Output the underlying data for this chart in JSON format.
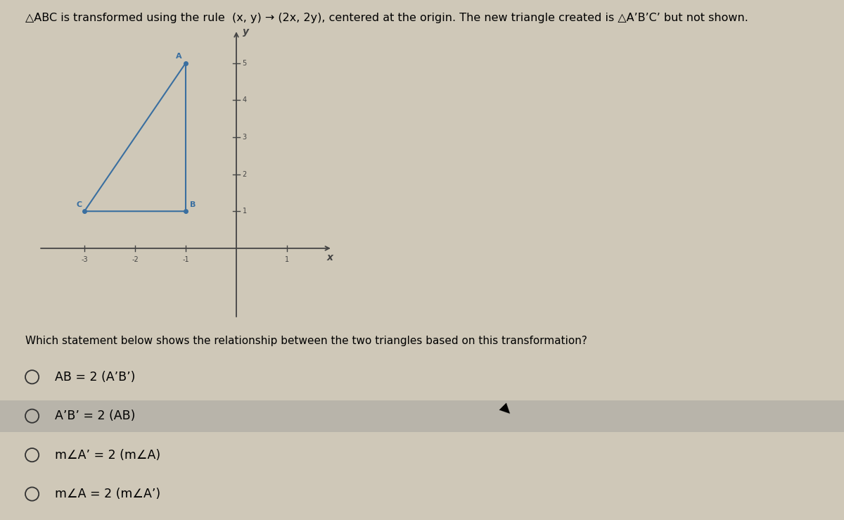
{
  "title_text1": "△ABC is transformed using the rule  (x, y) → (2x, 2y), centered at the origin. The new triangle created is △A’B’C’ but not shown.",
  "question_text": "Which statement below shows the relationship between the two triangles based on this transformation?",
  "triangle_vertices": {
    "A": [
      -1,
      5
    ],
    "B": [
      -1,
      1
    ],
    "C": [
      -3,
      1
    ]
  },
  "triangle_color": "#3a6fa0",
  "point_color": "#3a6fa0",
  "axis_color": "#444444",
  "bg_color": "#cfc8b8",
  "highlight_color": "#b8b4aa",
  "options": [
    {
      "text": "AB = 2 (A’B’)",
      "highlighted": false
    },
    {
      "text": "A’B’ = 2 (AB)",
      "highlighted": true
    },
    {
      "text": "m∠A’ = 2 (m∠A)",
      "highlighted": false
    },
    {
      "text": "m∠A = 2 (m∠A’)",
      "highlighted": false
    }
  ],
  "xmin": -4,
  "xmax": 2,
  "ymin": -2,
  "ymax": 6,
  "x_ticks": [
    -3,
    -2,
    -1,
    1
  ],
  "y_ticks": [
    1,
    2,
    3,
    4,
    5
  ]
}
